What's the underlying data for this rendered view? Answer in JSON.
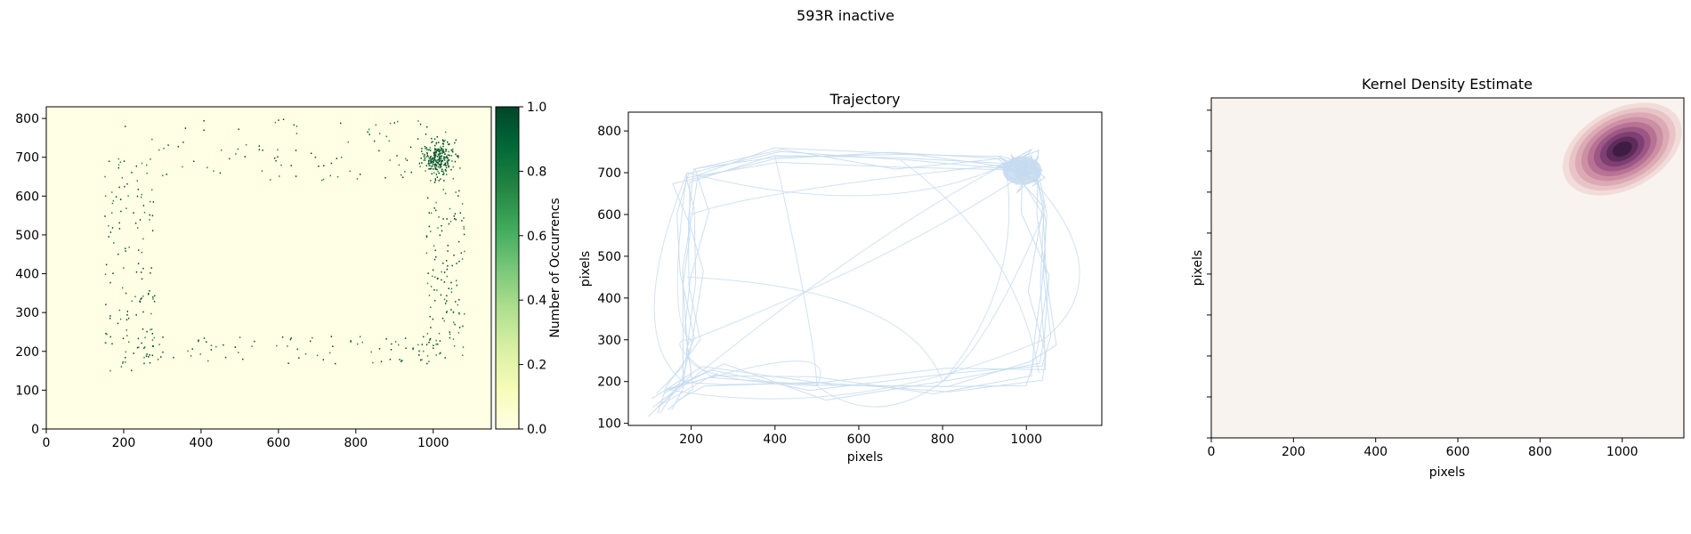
{
  "suptitle": "593R inactive",
  "chart_data": [
    {
      "type": "heatmap",
      "title": "",
      "xlabel": "",
      "ylabel": "",
      "colorbar_label": "Number of Occurrencs",
      "colormap": "YlGn",
      "colorbar_ticks": [
        "0.0",
        "0.2",
        "0.4",
        "0.6",
        "0.8",
        "1.0"
      ],
      "xlim": [
        0,
        1150
      ],
      "ylim": [
        0,
        830
      ],
      "xticks": [
        "0",
        "200",
        "400",
        "600",
        "800",
        "1000"
      ],
      "yticks": [
        "0",
        "100",
        "200",
        "300",
        "400",
        "500",
        "600",
        "700",
        "800"
      ],
      "hotspots": [
        {
          "x": [
            960,
            1060
          ],
          "y": [
            640,
            760
          ],
          "density": "high"
        },
        {
          "x": [
            150,
            280
          ],
          "y": [
            150,
            700
          ],
          "density": "medium"
        },
        {
          "x": [
            980,
            1080
          ],
          "y": [
            180,
            620
          ],
          "density": "medium"
        },
        {
          "x": [
            200,
            1000
          ],
          "y": [
            170,
            240
          ],
          "density": "low"
        },
        {
          "x": [
            200,
            1000
          ],
          "y": [
            640,
            800
          ],
          "density": "low"
        }
      ]
    },
    {
      "type": "line",
      "title": "Trajectory",
      "xlabel": "pixels",
      "ylabel": "pixels",
      "color": "#c6dbef",
      "xlim": [
        50,
        1180
      ],
      "ylim": [
        95,
        845
      ],
      "xticks": [
        "200",
        "400",
        "600",
        "800",
        "1000"
      ],
      "yticks": [
        "100",
        "200",
        "300",
        "400",
        "500",
        "600",
        "700",
        "800"
      ],
      "path_outline": [
        [
          120,
          140
        ],
        [
          180,
          200
        ],
        [
          200,
          300
        ],
        [
          190,
          450
        ],
        [
          200,
          600
        ],
        [
          190,
          700
        ],
        [
          400,
          740
        ],
        [
          700,
          730
        ],
        [
          950,
          720
        ],
        [
          1000,
          700
        ],
        [
          1040,
          600
        ],
        [
          1030,
          450
        ],
        [
          1040,
          300
        ],
        [
          1030,
          220
        ],
        [
          800,
          200
        ],
        [
          500,
          190
        ],
        [
          250,
          210
        ],
        [
          150,
          180
        ]
      ],
      "dense_cluster": {
        "x": 990,
        "y": 705
      }
    },
    {
      "type": "heatmap",
      "subtype": "kde",
      "title": "Kernel Density Estimate",
      "xlabel": "pixels",
      "ylabel": "pixels",
      "colormap": "cubehelix-light (purple)",
      "background_color": "#f9f3f0",
      "xlim": [
        0,
        1150
      ],
      "ylim": [
        0,
        830
      ],
      "xticks": [
        "0",
        "200",
        "400",
        "600",
        "800",
        "1000"
      ],
      "ytick_labels_visible": false,
      "peak": {
        "x": 1000,
        "y": 705
      }
    }
  ]
}
